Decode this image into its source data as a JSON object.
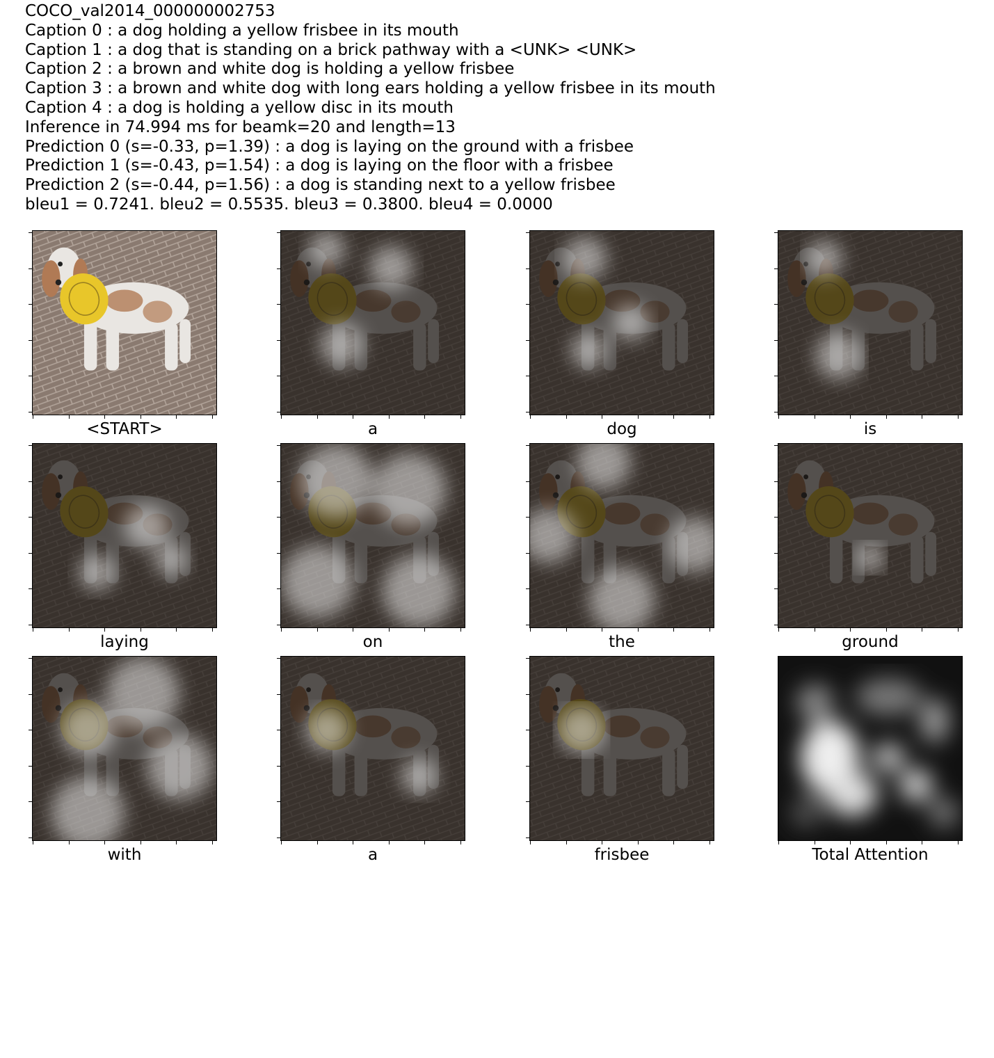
{
  "header": {
    "image_id": "COCO_val2014_000000002753",
    "captions": [
      "Caption 0 : a dog holding a yellow frisbee in its mouth",
      "Caption 1 : a dog that is standing on a brick pathway with a <UNK> <UNK>",
      "Caption 2 : a brown and white dog is holding a yellow frisbee",
      "Caption 3 : a brown and white dog with long ears holding a yellow frisbee in its mouth",
      "Caption 4 : a dog is holding a yellow disc in its mouth"
    ],
    "inference": "Inference in 74.994 ms for beamk=20 and length=13",
    "predictions": [
      "Prediction 0 (s=-0.33, p=1.39) : a dog is laying on the ground with a frisbee",
      "Prediction 1 (s=-0.43, p=1.54) : a dog is laying on the floor with a frisbee",
      "Prediction 2 (s=-0.44, p=1.56) : a dog is standing next to a yellow frisbee"
    ],
    "bleu": "bleu1 = 0.7241. bleu2 = 0.5535. bleu3 = 0.3800. bleu4 = 0.0000"
  },
  "panels": [
    {
      "word": "<START>",
      "kind": "original"
    },
    {
      "word": "a",
      "kind": "attention"
    },
    {
      "word": "dog",
      "kind": "attention"
    },
    {
      "word": "is",
      "kind": "attention"
    },
    {
      "word": "laying",
      "kind": "attention"
    },
    {
      "word": "on",
      "kind": "attention"
    },
    {
      "word": "the",
      "kind": "attention"
    },
    {
      "word": "ground",
      "kind": "attention"
    },
    {
      "word": "with",
      "kind": "attention"
    },
    {
      "word": "a",
      "kind": "attention"
    },
    {
      "word": "frisbee",
      "kind": "attention"
    },
    {
      "word": "Total Attention",
      "kind": "total"
    }
  ],
  "colors": {
    "brick": "#8a7a70",
    "dog_white": "#e9e6e2",
    "dog_brown": "#b07a55",
    "frisbee": "#e8c62a",
    "dim_overlay": "#1a1614"
  }
}
